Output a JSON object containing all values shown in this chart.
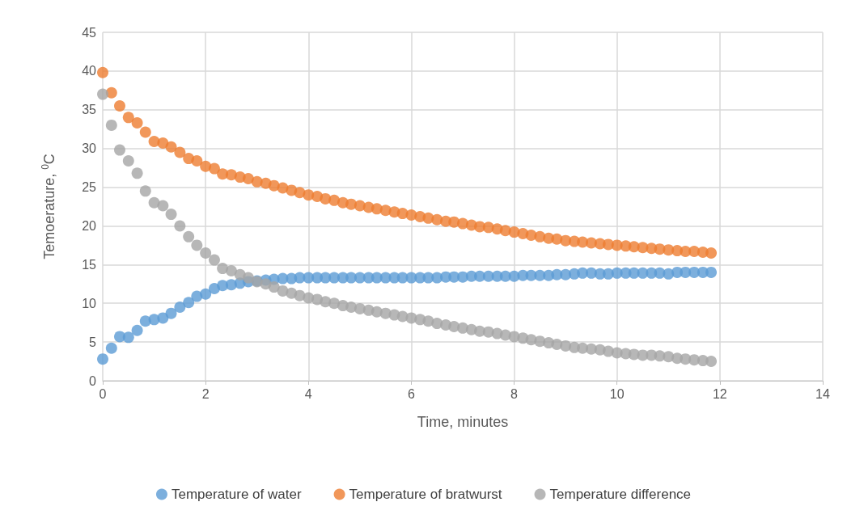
{
  "chart_data": {
    "type": "scatter",
    "xlabel": "Time, minutes",
    "ylabel": "Temoerature, $^{0}$C",
    "x": [
      0,
      0.17,
      0.33,
      0.5,
      0.67,
      0.83,
      1,
      1.17,
      1.33,
      1.5,
      1.67,
      1.83,
      2,
      2.17,
      2.33,
      2.5,
      2.67,
      2.83,
      3,
      3.17,
      3.33,
      3.5,
      3.67,
      3.83,
      4,
      4.17,
      4.33,
      4.5,
      4.67,
      4.83,
      5,
      5.17,
      5.33,
      5.5,
      5.67,
      5.83,
      6,
      6.17,
      6.33,
      6.5,
      6.67,
      6.83,
      7,
      7.17,
      7.33,
      7.5,
      7.67,
      7.83,
      8,
      8.17,
      8.33,
      8.5,
      8.67,
      8.83,
      9,
      9.17,
      9.33,
      9.5,
      9.67,
      9.83,
      10,
      10.17,
      10.33,
      10.5,
      10.67,
      10.83,
      11,
      11.17,
      11.33,
      11.5,
      11.67,
      11.83
    ],
    "series": [
      {
        "name": "Temperature of water",
        "color": "#5b9bd5",
        "values": [
          2.8,
          4.2,
          5.7,
          5.6,
          6.5,
          7.7,
          7.9,
          8.1,
          8.7,
          9.5,
          10.1,
          10.9,
          11.2,
          11.9,
          12.3,
          12.4,
          12.6,
          12.8,
          12.9,
          13.0,
          13.1,
          13.2,
          13.2,
          13.3,
          13.3,
          13.3,
          13.3,
          13.3,
          13.3,
          13.3,
          13.3,
          13.3,
          13.3,
          13.3,
          13.3,
          13.3,
          13.3,
          13.3,
          13.3,
          13.3,
          13.4,
          13.4,
          13.4,
          13.5,
          13.5,
          13.5,
          13.5,
          13.5,
          13.5,
          13.6,
          13.6,
          13.6,
          13.6,
          13.7,
          13.7,
          13.8,
          13.9,
          13.9,
          13.8,
          13.8,
          13.9,
          13.9,
          13.9,
          13.9,
          13.9,
          13.9,
          13.8,
          14.0,
          14.0,
          14.0,
          14.0,
          14.0
        ]
      },
      {
        "name": "Temperature of bratwurst",
        "color": "#ed7d31",
        "values": [
          39.8,
          37.2,
          35.5,
          34.0,
          33.3,
          32.1,
          30.9,
          30.7,
          30.2,
          29.5,
          28.7,
          28.4,
          27.7,
          27.4,
          26.7,
          26.6,
          26.3,
          26.1,
          25.7,
          25.5,
          25.2,
          24.9,
          24.6,
          24.3,
          24.0,
          23.8,
          23.5,
          23.3,
          23.0,
          22.8,
          22.6,
          22.4,
          22.2,
          22.0,
          21.8,
          21.6,
          21.4,
          21.2,
          21.0,
          20.8,
          20.6,
          20.5,
          20.3,
          20.1,
          19.9,
          19.8,
          19.6,
          19.4,
          19.2,
          19.0,
          18.8,
          18.6,
          18.4,
          18.3,
          18.1,
          18.0,
          17.9,
          17.8,
          17.7,
          17.6,
          17.5,
          17.4,
          17.3,
          17.2,
          17.1,
          17.0,
          16.9,
          16.8,
          16.7,
          16.7,
          16.6,
          16.5
        ]
      },
      {
        "name": "Temperature difference",
        "color": "#a5a5a5",
        "values": [
          37.0,
          33.0,
          29.8,
          28.4,
          26.8,
          24.5,
          23.0,
          22.6,
          21.5,
          20.0,
          18.6,
          17.5,
          16.5,
          15.6,
          14.5,
          14.2,
          13.7,
          13.3,
          12.8,
          12.5,
          12.1,
          11.6,
          11.3,
          11.0,
          10.7,
          10.5,
          10.2,
          10.0,
          9.7,
          9.5,
          9.3,
          9.1,
          8.9,
          8.7,
          8.5,
          8.3,
          8.1,
          7.9,
          7.7,
          7.4,
          7.2,
          7.0,
          6.8,
          6.6,
          6.4,
          6.3,
          6.1,
          5.9,
          5.7,
          5.5,
          5.3,
          5.1,
          4.9,
          4.7,
          4.5,
          4.3,
          4.2,
          4.1,
          4.0,
          3.8,
          3.6,
          3.5,
          3.4,
          3.3,
          3.3,
          3.2,
          3.1,
          2.9,
          2.8,
          2.7,
          2.6,
          2.5
        ]
      }
    ],
    "xlim": [
      0,
      14
    ],
    "xticks": [
      0,
      2,
      4,
      6,
      8,
      10,
      12,
      14
    ],
    "ylim": [
      0,
      45
    ],
    "yticks": [
      0,
      5,
      10,
      15,
      20,
      25,
      30,
      35,
      40,
      45
    ],
    "grid": true,
    "legend": "bottom",
    "marker": "circle"
  }
}
